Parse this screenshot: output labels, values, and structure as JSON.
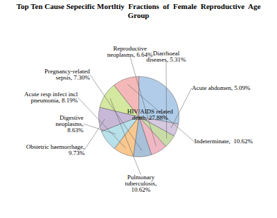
{
  "chart_data": {
    "type": "pie",
    "title": "Top Ten Cause Sepecific Mortltiy  Fractions  of  Female  Reproductive  Age  Group",
    "categories": [
      "HIV/AIDS related\ndeath, 27.88%",
      "Acute abdomen, 5.09%",
      "Diarrhoeal\ndiseases, 5.31%",
      "Reproductive\nneoplasms, 6.64%",
      "Pregnancy-related\nsepsis, 7.30%",
      "Acute resp infect incl\npneumonia, 8.19%",
      "Digestive\nneoplasms,\n8.63%",
      "Obstetric haemorrhage,\n9.73%",
      "Pulmonary\ntuberculosis,\n10.62%",
      "Indeterminate,  10.62%"
    ],
    "values": [
      27.88,
      5.09,
      5.31,
      6.64,
      7.3,
      8.19,
      8.63,
      9.73,
      10.62,
      10.62
    ],
    "colors": [
      "#b0cce8",
      "#d5c8e0",
      "#c8dca8",
      "#f0b8c4",
      "#a8c0d8",
      "#f8c890",
      "#b8e0ea",
      "#c8b8d8",
      "#d4e8a0",
      "#f4b8b8"
    ]
  }
}
